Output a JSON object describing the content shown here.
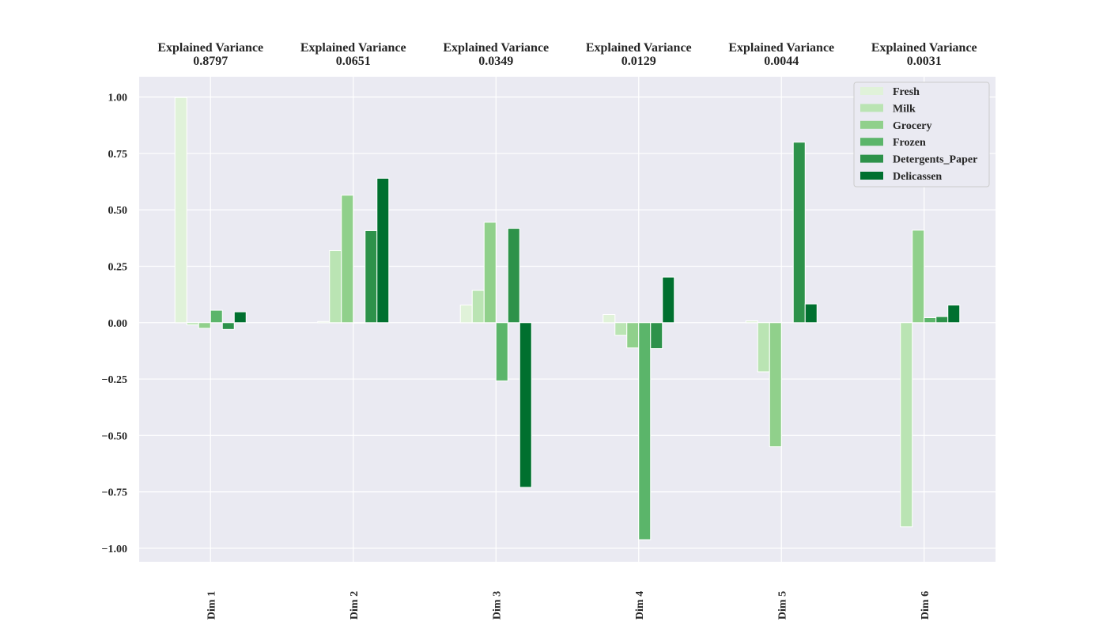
{
  "chart_data": {
    "type": "bar",
    "categories": [
      "Dim 1",
      "Dim 2",
      "Dim 3",
      "Dim 4",
      "Dim 5",
      "Dim 6"
    ],
    "explained_variance_label": "Explained Variance",
    "explained_variance": [
      "0.8797",
      "0.0651",
      "0.0349",
      "0.0129",
      "0.0044",
      "0.0031"
    ],
    "series": [
      {
        "name": "Fresh",
        "color": "#e0f2d9",
        "values": [
          0.998,
          0.005,
          0.078,
          0.036,
          0.008,
          0.0
        ]
      },
      {
        "name": "Milk",
        "color": "#bae4b3",
        "values": [
          -0.01,
          0.32,
          0.143,
          -0.056,
          -0.218,
          -0.905
        ]
      },
      {
        "name": "Grocery",
        "color": "#90d08b",
        "values": [
          -0.025,
          0.565,
          0.445,
          -0.112,
          -0.55,
          0.41
        ]
      },
      {
        "name": "Frozen",
        "color": "#5bb56a",
        "values": [
          0.055,
          -0.002,
          -0.258,
          -0.962,
          0.0,
          0.022
        ]
      },
      {
        "name": "Detergents_Paper",
        "color": "#2d924a",
        "values": [
          -0.03,
          0.408,
          0.418,
          -0.115,
          0.8,
          0.027
        ]
      },
      {
        "name": "Delicassen",
        "color": "#00702f",
        "values": [
          0.048,
          0.64,
          -0.73,
          0.202,
          0.083,
          0.078
        ]
      }
    ],
    "yticks": [
      "1.00",
      "0.75",
      "0.50",
      "0.25",
      "0.00",
      "−0.25",
      "−0.50",
      "−0.75",
      "−1.00"
    ],
    "ylim": [
      -1.06,
      1.09
    ],
    "grid": true,
    "legend_position": "top-right"
  }
}
